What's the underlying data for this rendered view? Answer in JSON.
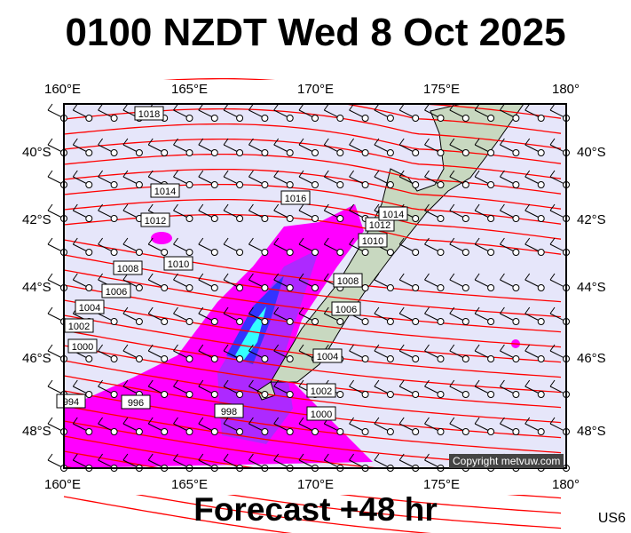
{
  "title": "0100 NZDT Wed 8 Oct 2025",
  "footer": "Forecast +48 hr",
  "station": "US6",
  "copyright": "Copyright metvuw.com",
  "lon_labels": [
    "160°E",
    "165°E",
    "170°E",
    "175°E",
    "180°"
  ],
  "lat_labels": [
    "40°S",
    "42°S",
    "44°S",
    "46°S",
    "48°S"
  ],
  "isobar_labels": [
    "1018",
    "1016",
    "1014",
    "1012",
    "1010",
    "1008",
    "1006",
    "1004",
    "1002",
    "1000",
    "996",
    "998",
    "1000",
    "1002",
    "1004",
    "1006",
    "1008",
    "1010",
    "1012",
    "1014",
    "994"
  ],
  "colors": {
    "ocean": "#e6e6fa",
    "isobar": "#ff0000",
    "rain_light": "#ff00ff",
    "rain_mid": "#9933ff",
    "rain_heavy": "#3333ff",
    "rain_max": "#33ffff",
    "land": "#c8d8c0"
  }
}
